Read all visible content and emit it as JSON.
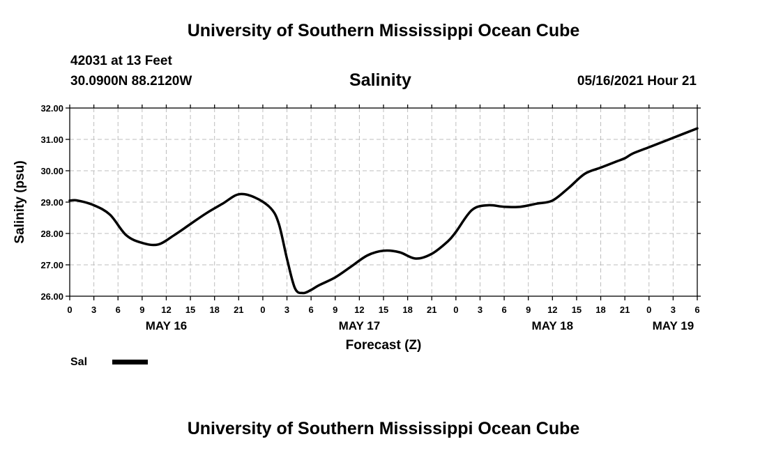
{
  "header": {
    "title": "University of Southern Mississippi Ocean Cube",
    "station": "42031 at 13 Feet",
    "coords": "30.0900N  88.2120W",
    "date": "05/16/2021 Hour 21"
  },
  "footer": {
    "title": "University of Southern Mississippi Ocean Cube"
  },
  "legend": {
    "label": "Sal"
  },
  "chart_data": {
    "type": "line",
    "title": "Salinity",
    "xlabel": "Forecast (Z)",
    "ylabel": "Salinity (psu)",
    "xlim": [
      0,
      78
    ],
    "ylim": [
      26,
      32
    ],
    "grid": true,
    "y_ticks": [
      26,
      27,
      28,
      29,
      30,
      31,
      32
    ],
    "y_tick_labels": [
      "26.00",
      "27.00",
      "28.00",
      "29.00",
      "30.00",
      "31.00",
      "32.00"
    ],
    "x_ticks": [
      0,
      3,
      6,
      9,
      12,
      15,
      18,
      21,
      24,
      27,
      30,
      33,
      36,
      39,
      42,
      45,
      48,
      51,
      54,
      57,
      60,
      63,
      66,
      69,
      72,
      75,
      78
    ],
    "x_tick_labels": [
      "0",
      "3",
      "6",
      "9",
      "12",
      "15",
      "18",
      "21",
      "0",
      "3",
      "6",
      "9",
      "12",
      "15",
      "18",
      "21",
      "0",
      "3",
      "6",
      "9",
      "12",
      "15",
      "18",
      "21",
      "0",
      "3",
      "6"
    ],
    "day_labels": [
      {
        "x": 12,
        "label": "MAY 16"
      },
      {
        "x": 36,
        "label": "MAY 17"
      },
      {
        "x": 60,
        "label": "MAY 18"
      },
      {
        "x": 75,
        "label": "MAY 19"
      }
    ],
    "series": [
      {
        "name": "Sal",
        "color": "#000000",
        "x": [
          0,
          1,
          3,
          5,
          7,
          9,
          11,
          13,
          15,
          17,
          19,
          21,
          23,
          25,
          26,
          27,
          28,
          29,
          30,
          31,
          33,
          35,
          37,
          39,
          41,
          43,
          45,
          47,
          48,
          50,
          52,
          54,
          56,
          58,
          60,
          62,
          64,
          66,
          68,
          69,
          70,
          72,
          75,
          78
        ],
        "values": [
          29.05,
          29.05,
          28.9,
          28.6,
          27.95,
          27.7,
          27.65,
          27.95,
          28.3,
          28.65,
          28.95,
          29.25,
          29.15,
          28.8,
          28.3,
          27.2,
          26.25,
          26.1,
          26.2,
          26.35,
          26.6,
          26.95,
          27.3,
          27.45,
          27.4,
          27.2,
          27.35,
          27.75,
          28.05,
          28.75,
          28.9,
          28.85,
          28.85,
          28.95,
          29.05,
          29.45,
          29.9,
          30.1,
          30.3,
          30.4,
          30.55,
          30.75,
          31.05,
          31.35
        ]
      }
    ]
  }
}
